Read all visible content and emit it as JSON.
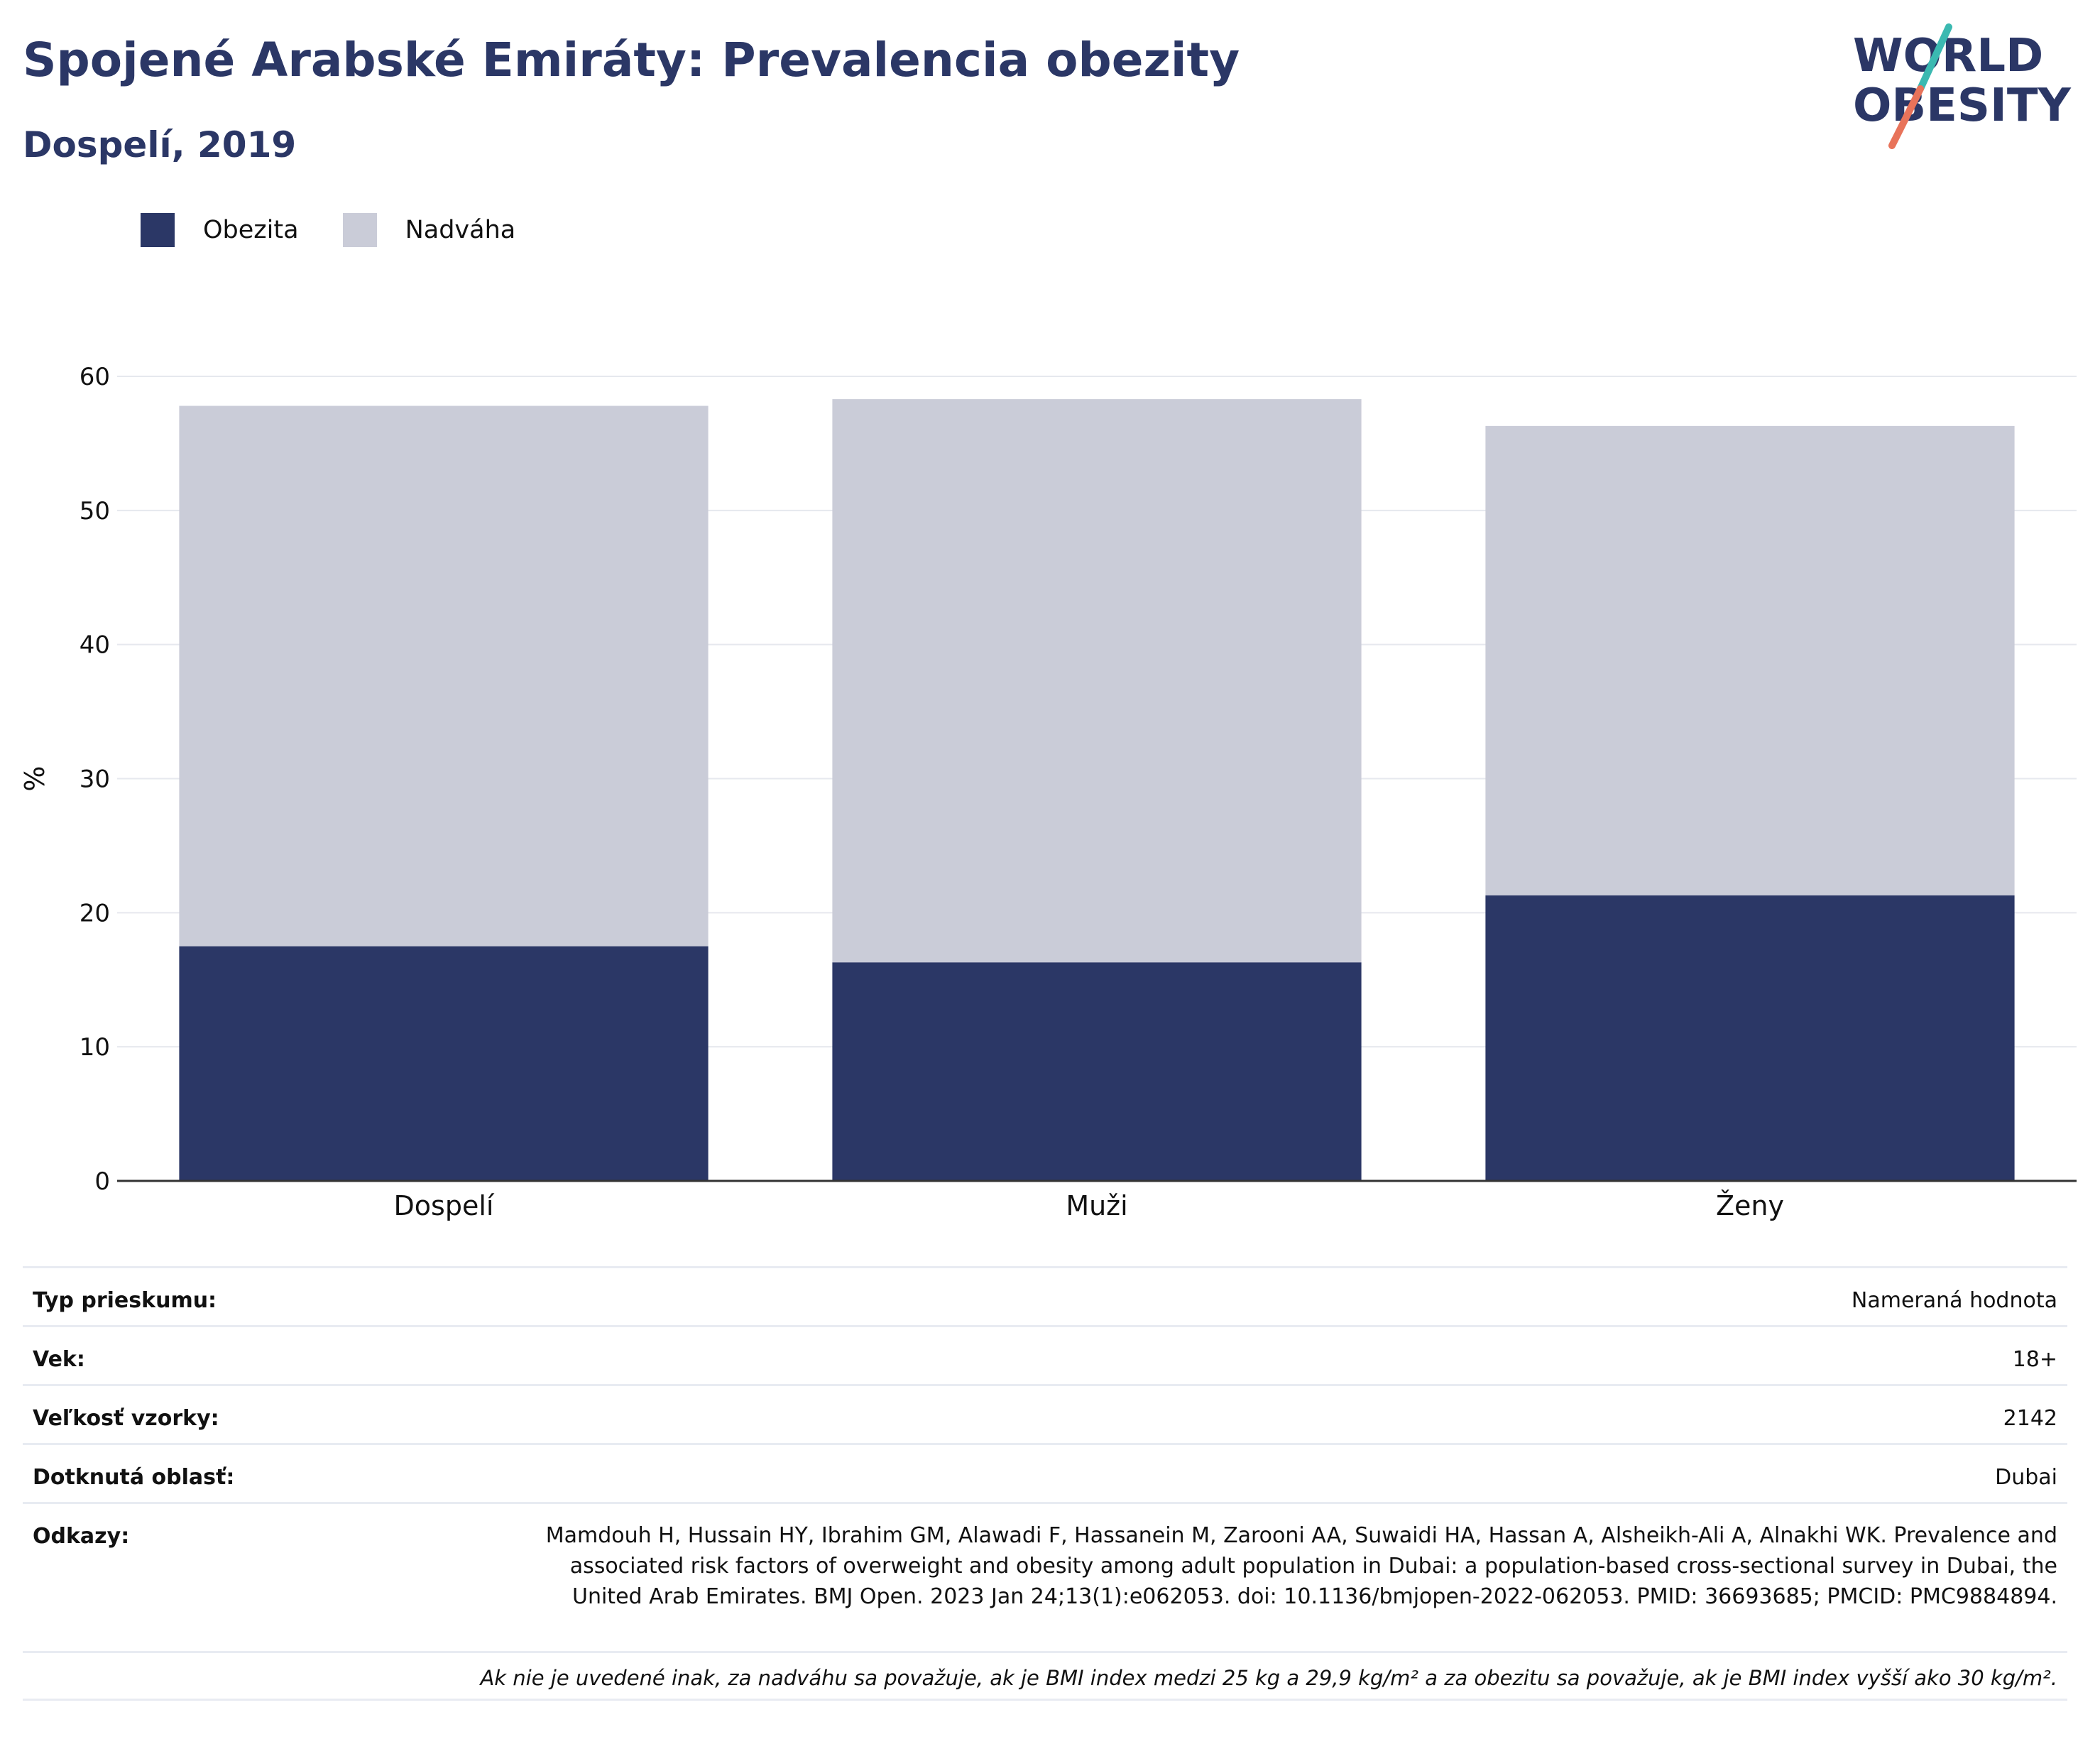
{
  "title": "Spojené Arabské Emiráty: Prevalencia obezity",
  "subtitle": "Dospelí, 2019",
  "logo": {
    "line1": "WORLD",
    "line2": "OBESITY",
    "colors": {
      "text": "#2b3766",
      "accent_teal": "#3bb9b1",
      "accent_coral": "#e8735a"
    }
  },
  "legend": [
    {
      "label": "Obezita",
      "color": "#2b3766"
    },
    {
      "label": "Nadváha",
      "color": "#caccd8"
    }
  ],
  "chart_data": {
    "type": "bar",
    "stacked": true,
    "categories": [
      "Dospelí",
      "Muži",
      "Ženy"
    ],
    "series": [
      {
        "name": "Obezita",
        "color": "#2b3766",
        "values": [
          17.5,
          16.3,
          21.3
        ]
      },
      {
        "name": "Nadváha",
        "color": "#caccd8",
        "values": [
          40.3,
          42.0,
          35.0
        ]
      }
    ],
    "ylabel": "%",
    "ylim": [
      0,
      60
    ],
    "yticks": [
      "0",
      "10",
      "20",
      "30",
      "40",
      "50",
      "60"
    ],
    "grid": true,
    "legend_position": "top-left"
  },
  "info": {
    "rows": [
      {
        "label": "Typ prieskumu:",
        "value": "Nameraná hodnota"
      },
      {
        "label": "Vek:",
        "value": "18+"
      },
      {
        "label": "Veľkosť vzorky:",
        "value": "2142"
      },
      {
        "label": "Dotknutá oblasť:",
        "value": "Dubai"
      }
    ],
    "references_label": "Odkazy:",
    "references": "Mamdouh H, Hussain HY, Ibrahim GM, Alawadi F, Hassanein M, Zarooni AA, Suwaidi HA, Hassan A, Alsheikh-Ali A, Alnakhi WK. Prevalence and associated risk factors of overweight and obesity among adult population in Dubai: a population-based cross-sectional survey in Dubai, the United Arab Emirates. BMJ Open. 2023 Jan 24;13(1):e062053. doi: 10.1136/bmjopen-2022-062053. PMID: 36693685; PMCID: PMC9884894.",
    "note": "Ak nie je uvedené inak, za nadváhu sa považuje, ak je BMI index medzi 25 kg a 29,9 kg/m² a za obezitu sa považuje, ak je BMI index vyšší ako 30 kg/m²."
  }
}
